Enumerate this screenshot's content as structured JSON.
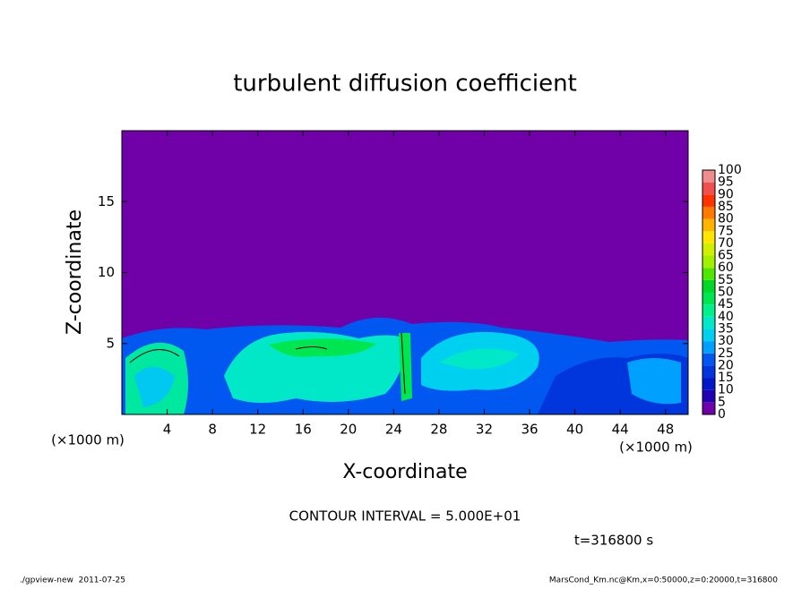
{
  "chart_data": {
    "type": "contour",
    "title": "turbulent diffusion coefficient",
    "x_label": "X-coordinate",
    "y_label": "Z-coordinate",
    "x_unit": "(×1000 m)",
    "xlim": [
      0,
      50
    ],
    "xticks": [
      4,
      8,
      12,
      16,
      20,
      24,
      28,
      32,
      36,
      40,
      44,
      48
    ],
    "ylim": [
      0,
      20
    ],
    "yticks": [
      5,
      10,
      15
    ],
    "levels": [
      0,
      5,
      10,
      15,
      20,
      25,
      30,
      35,
      40,
      45,
      50,
      55,
      60,
      65,
      70,
      75,
      80,
      85,
      90,
      95,
      100
    ],
    "level_colors": [
      "#7000a8",
      "#2000b4",
      "#0018c8",
      "#0036dc",
      "#0058f0",
      "#00a0ff",
      "#00d0f0",
      "#00e8c8",
      "#00f08c",
      "#00e650",
      "#00d828",
      "#50e600",
      "#a0f000",
      "#d0f000",
      "#ffe600",
      "#ffb400",
      "#ff7800",
      "#ff3200",
      "#f05050",
      "#f08c8c"
    ],
    "contour_interval_note": "CONTOUR INTERVAL = 5.000E+01",
    "time_note": "t=316800 s",
    "footer_left": "./gpview-new  2011-07-25",
    "footer_right": "MarsCond_Km.nc@Km,x=0:50000,z=0:20000,t=316800"
  }
}
